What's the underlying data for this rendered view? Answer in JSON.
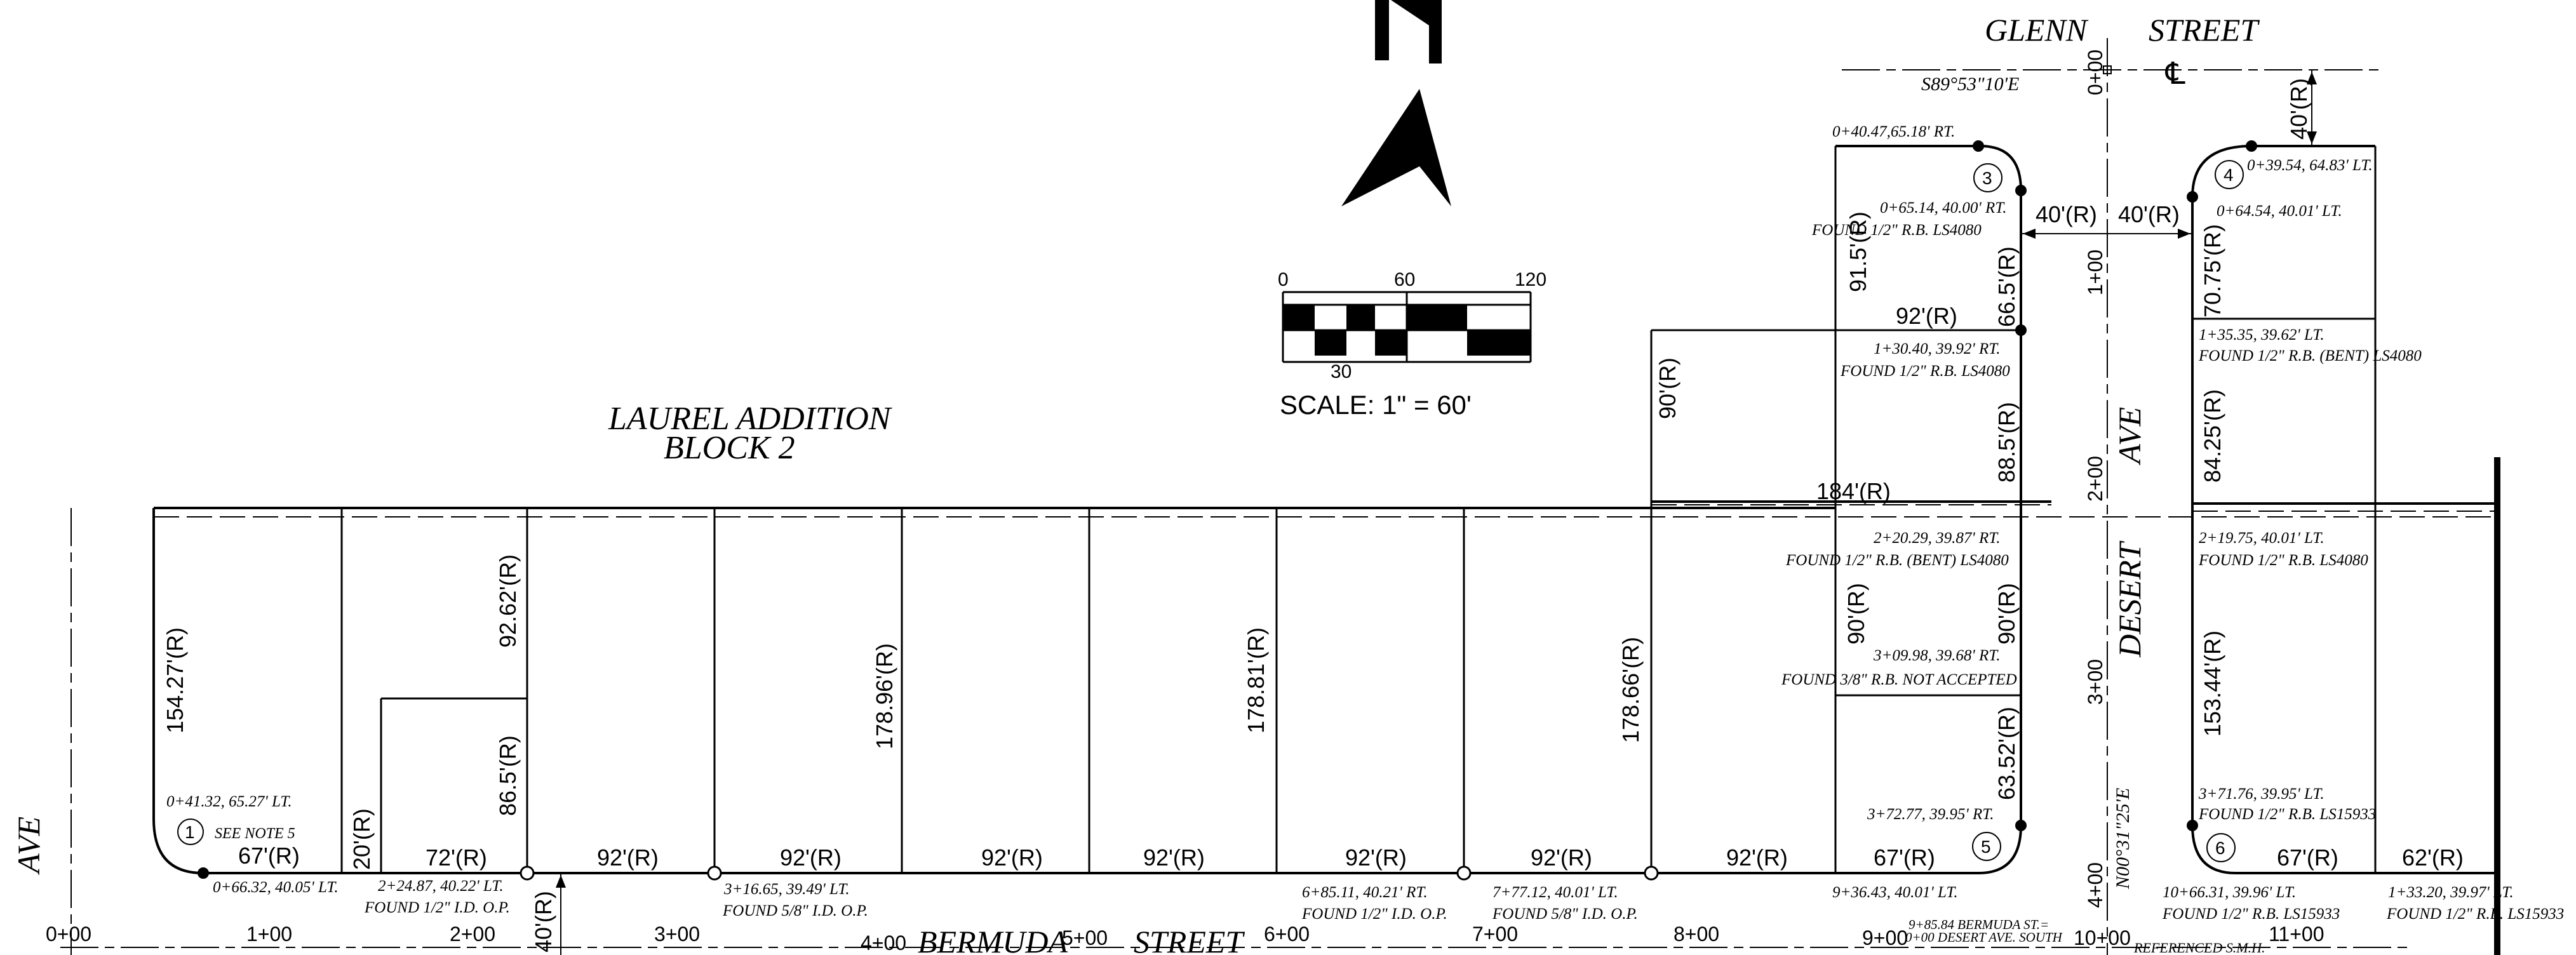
{
  "streets": {
    "glenn": "GLENN",
    "glenn_street": "STREET",
    "bermuda": "BERMUDA",
    "bermuda_street": "STREET",
    "desert": "DESERT",
    "desert_ave": "AVE",
    "ave_left": "AVE"
  },
  "subdivision": {
    "line1": "LAUREL ADDITION",
    "line2": "BLOCK 2"
  },
  "scale": {
    "t0": "0",
    "t60": "60",
    "t120": "120",
    "t30": "30",
    "label": "SCALE:  1\"  =  60'"
  },
  "bearings": {
    "glenn": "S89°53\"10'E",
    "desert": "N00°31\"25'E"
  },
  "centerline_symbol": "℄",
  "stations_bottom": [
    "0+00",
    "1+00",
    "2+00",
    "3+00",
    "4+00",
    "5+00",
    "6+00",
    "7+00",
    "8+00",
    "9+00",
    "10+00",
    "11+00"
  ],
  "stations_vertical": [
    "0+00",
    "1+00",
    "2+00",
    "3+00",
    "4+00"
  ],
  "dims": {
    "d154": "154.27'(R)",
    "d20": "20'(R)",
    "d92_62": "92.62'(R)",
    "d86_5": "86.5'(R)",
    "d178_96": "178.96'(R)",
    "d178_81": "178.81'(R)",
    "d178_66": "178.66'(R)",
    "d67a": "67'(R)",
    "d72": "72'(R)",
    "d92": "92'(R)",
    "d40v": "40'(R)",
    "d90a": "90'(R)",
    "d184": "184'(R)",
    "d91_5": "91.5'(R)",
    "d66_5": "66.5'(R)",
    "d92b": "92'(R)",
    "d88_5": "88.5'(R)",
    "d90b": "90'(R)",
    "d90c": "90'(R)",
    "d63_52": "63.52'(R)",
    "d67b": "67'(R)",
    "d40l": "40'(R)",
    "d40r": "40'(R)",
    "d40top": "40'(R)",
    "d70_75": "70.75'(R)",
    "d84_25": "84.25'(R)",
    "d153_44": "153.44'(R)",
    "d67c": "67'(R)",
    "d62": "62'(R)"
  },
  "monuments": {
    "m1": "1",
    "m3": "3",
    "m4": "4",
    "m5": "5",
    "m6": "6",
    "see_note": "SEE NOTE 5"
  },
  "notes": {
    "n1": "0+41.32, 65.27' LT.",
    "n2": "0+66.32, 40.05' LT.",
    "n3a": "2+24.87, 40.22' LT.",
    "n3b": "FOUND 1/2\" I.D. O.P.",
    "n4a": "3+16.65, 39.49' LT.",
    "n4b": "FOUND 5/8\" I.D. O.P.",
    "n5a": "6+85.11, 40.21' RT.",
    "n5b": "FOUND 1/2\" I.D. O.P.",
    "n6a": "7+77.12, 40.01' LT.",
    "n6b": "FOUND 5/8\" I.D. O.P.",
    "n7": "9+36.43, 40.01' LT.",
    "n8a": "9+85.84 BERMUDA ST.=",
    "n8b": "0+00 DESERT AVE. SOUTH",
    "n9a": "10+66.31, 39.96' LT.",
    "n9b": "FOUND 1/2\" R.B. LS15933",
    "n10a": "1+33.20, 39.97' LT.",
    "n10b": "FOUND 1/2\" R.B. LS15933",
    "n11": "REFERENCED S.M.H.",
    "n12": "0+40.47,65.18' RT.",
    "n13a": "0+65.14, 40.00' RT.",
    "n13b": "FOUND 1/2\" R.B. LS4080",
    "n14a": "1+30.40, 39.92' RT.",
    "n14b": "FOUND 1/2\" R.B. LS4080",
    "n15a": "2+20.29, 39.87' RT.",
    "n15b": "FOUND 1/2\" R.B. (BENT) LS4080",
    "n16a": "3+09.98, 39.68' RT.",
    "n16b": "FOUND 3/8\" R.B. NOT ACCEPTED",
    "n17": "3+72.77, 39.95' RT.",
    "n18": "0+39.54, 64.83' LT.",
    "n19": "0+64.54, 40.01' LT.",
    "n20a": "1+35.35, 39.62' LT.",
    "n20b": "FOUND 1/2\" R.B. (BENT) LS4080",
    "n21a": "2+19.75, 40.01' LT.",
    "n21b": "FOUND 1/2\" R.B. LS4080",
    "n22a": "3+71.76, 39.95' LT.",
    "n22b": "FOUND 1/2\" R.B. LS15933"
  }
}
